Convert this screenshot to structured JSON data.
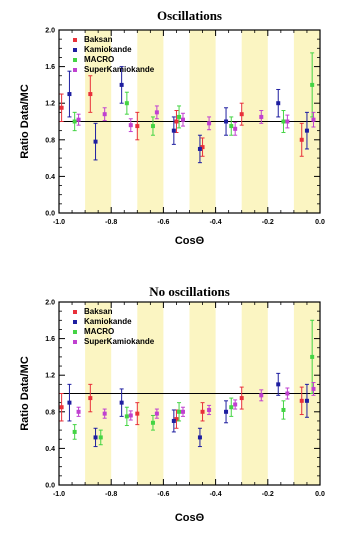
{
  "chart_data": [
    {
      "type": "scatter",
      "title": "Oscillations",
      "xlabel": "CosΘ",
      "ylabel": "Ratio Data/MC",
      "xlim": [
        -1.0,
        0.0
      ],
      "ylim": [
        0.0,
        2.0
      ],
      "xticks": [
        "-1.0",
        "-0.8",
        "-0.6",
        "-0.4",
        "-0.2",
        "0.0"
      ],
      "yticks": [
        "0.0",
        "0.4",
        "0.8",
        "1.2",
        "1.6",
        "2.0"
      ],
      "reference_line": 1.0,
      "shaded_bands": [
        [
          -0.9,
          -0.8
        ],
        [
          -0.7,
          -0.6
        ],
        [
          -0.5,
          -0.4
        ],
        [
          -0.3,
          -0.2
        ],
        [
          -0.1,
          0.0
        ]
      ],
      "legend_position": "top-left",
      "series": [
        {
          "name": "Baksan",
          "color": "#e8303a",
          "points": [
            {
              "x": -0.99,
              "y": 1.15,
              "err": 0.15
            },
            {
              "x": -0.88,
              "y": 1.3,
              "err": 0.2
            },
            {
              "x": -0.7,
              "y": 0.95,
              "err": 0.15
            },
            {
              "x": -0.55,
              "y": 1.0,
              "err": 0.12
            },
            {
              "x": -0.45,
              "y": 0.72,
              "err": 0.1
            },
            {
              "x": -0.3,
              "y": 1.08,
              "err": 0.12
            },
            {
              "x": -0.07,
              "y": 0.8,
              "err": 0.18
            }
          ]
        },
        {
          "name": "Kamiokande",
          "color": "#1e1ea0",
          "points": [
            {
              "x": -0.96,
              "y": 1.3,
              "err": 0.25
            },
            {
              "x": -0.86,
              "y": 0.78,
              "err": 0.2
            },
            {
              "x": -0.76,
              "y": 1.4,
              "err": 0.2
            },
            {
              "x": -0.56,
              "y": 0.9,
              "err": 0.15
            },
            {
              "x": -0.46,
              "y": 0.7,
              "err": 0.15
            },
            {
              "x": -0.36,
              "y": 1.0,
              "err": 0.15
            },
            {
              "x": -0.16,
              "y": 1.2,
              "err": 0.15
            },
            {
              "x": -0.05,
              "y": 0.9,
              "err": 0.2
            }
          ]
        },
        {
          "name": "MACRO",
          "color": "#44d444",
          "points": [
            {
              "x": -0.94,
              "y": 1.0,
              "err": 0.1
            },
            {
              "x": -0.74,
              "y": 1.2,
              "err": 0.12
            },
            {
              "x": -0.64,
              "y": 0.95,
              "err": 0.1
            },
            {
              "x": -0.54,
              "y": 1.05,
              "err": 0.12
            },
            {
              "x": -0.34,
              "y": 0.95,
              "err": 0.1
            },
            {
              "x": -0.14,
              "y": 1.0,
              "err": 0.12
            },
            {
              "x": -0.03,
              "y": 1.4,
              "err": 0.35
            }
          ]
        },
        {
          "name": "SuperKamiokande",
          "color": "#c040d0",
          "points": [
            {
              "x": -0.925,
              "y": 1.02,
              "err": 0.06
            },
            {
              "x": -0.825,
              "y": 1.08,
              "err": 0.07
            },
            {
              "x": -0.725,
              "y": 0.96,
              "err": 0.07
            },
            {
              "x": -0.625,
              "y": 1.1,
              "err": 0.07
            },
            {
              "x": -0.525,
              "y": 1.02,
              "err": 0.07
            },
            {
              "x": -0.425,
              "y": 0.98,
              "err": 0.07
            },
            {
              "x": -0.325,
              "y": 0.92,
              "err": 0.07
            },
            {
              "x": -0.225,
              "y": 1.05,
              "err": 0.07
            },
            {
              "x": -0.125,
              "y": 1.0,
              "err": 0.07
            },
            {
              "x": -0.025,
              "y": 1.02,
              "err": 0.08
            }
          ]
        }
      ]
    },
    {
      "type": "scatter",
      "title": "No oscillations",
      "xlabel": "CosΘ",
      "ylabel": "Ratio Data/MC",
      "xlim": [
        -1.0,
        0.0
      ],
      "ylim": [
        0.0,
        2.0
      ],
      "xticks": [
        "-1.0",
        "-0.8",
        "-0.6",
        "-0.4",
        "-0.2",
        "0.0"
      ],
      "yticks": [
        "0.0",
        "0.4",
        "0.8",
        "1.2",
        "1.6",
        "2.0"
      ],
      "reference_line": 1.0,
      "shaded_bands": [
        [
          -0.9,
          -0.8
        ],
        [
          -0.7,
          -0.6
        ],
        [
          -0.5,
          -0.4
        ],
        [
          -0.3,
          -0.2
        ],
        [
          -0.1,
          0.0
        ]
      ],
      "legend_position": "top-left",
      "series": [
        {
          "name": "Baksan",
          "color": "#e8303a",
          "points": [
            {
              "x": -0.99,
              "y": 0.85,
              "err": 0.15
            },
            {
              "x": -0.88,
              "y": 0.95,
              "err": 0.15
            },
            {
              "x": -0.7,
              "y": 0.78,
              "err": 0.12
            },
            {
              "x": -0.55,
              "y": 0.72,
              "err": 0.1
            },
            {
              "x": -0.45,
              "y": 0.8,
              "err": 0.1
            },
            {
              "x": -0.3,
              "y": 0.95,
              "err": 0.12
            },
            {
              "x": -0.07,
              "y": 0.92,
              "err": 0.15
            }
          ]
        },
        {
          "name": "Kamiokande",
          "color": "#1e1ea0",
          "points": [
            {
              "x": -0.96,
              "y": 0.9,
              "err": 0.2
            },
            {
              "x": -0.86,
              "y": 0.52,
              "err": 0.1
            },
            {
              "x": -0.76,
              "y": 0.9,
              "err": 0.15
            },
            {
              "x": -0.56,
              "y": 0.7,
              "err": 0.12
            },
            {
              "x": -0.46,
              "y": 0.52,
              "err": 0.1
            },
            {
              "x": -0.36,
              "y": 0.8,
              "err": 0.12
            },
            {
              "x": -0.16,
              "y": 1.1,
              "err": 0.12
            },
            {
              "x": -0.05,
              "y": 0.92,
              "err": 0.18
            }
          ]
        },
        {
          "name": "MACRO",
          "color": "#44d444",
          "points": [
            {
              "x": -0.94,
              "y": 0.58,
              "err": 0.08
            },
            {
              "x": -0.84,
              "y": 0.52,
              "err": 0.08
            },
            {
              "x": -0.74,
              "y": 0.75,
              "err": 0.1
            },
            {
              "x": -0.64,
              "y": 0.68,
              "err": 0.08
            },
            {
              "x": -0.54,
              "y": 0.8,
              "err": 0.1
            },
            {
              "x": -0.34,
              "y": 0.85,
              "err": 0.1
            },
            {
              "x": -0.14,
              "y": 0.82,
              "err": 0.1
            },
            {
              "x": -0.03,
              "y": 1.4,
              "err": 0.4
            }
          ]
        },
        {
          "name": "SuperKamiokande",
          "color": "#c040d0",
          "points": [
            {
              "x": -0.925,
              "y": 0.8,
              "err": 0.05
            },
            {
              "x": -0.825,
              "y": 0.78,
              "err": 0.05
            },
            {
              "x": -0.725,
              "y": 0.76,
              "err": 0.05
            },
            {
              "x": -0.625,
              "y": 0.78,
              "err": 0.05
            },
            {
              "x": -0.525,
              "y": 0.8,
              "err": 0.05
            },
            {
              "x": -0.425,
              "y": 0.82,
              "err": 0.05
            },
            {
              "x": -0.325,
              "y": 0.88,
              "err": 0.05
            },
            {
              "x": -0.225,
              "y": 0.98,
              "err": 0.06
            },
            {
              "x": -0.125,
              "y": 1.0,
              "err": 0.06
            },
            {
              "x": -0.025,
              "y": 1.05,
              "err": 0.07
            }
          ]
        }
      ]
    }
  ]
}
